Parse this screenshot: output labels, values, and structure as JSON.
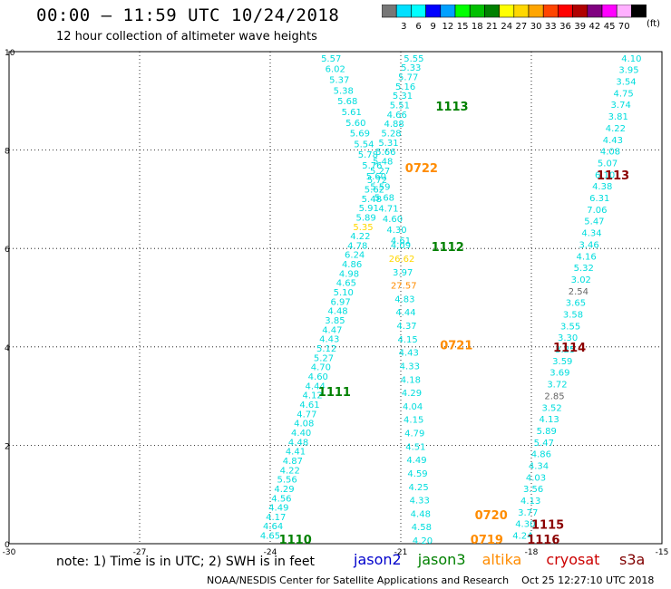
{
  "header": {
    "title": "00:00 – 11:59 UTC 10/24/2018",
    "subtitle": "12 hour collection of altimeter wave heights"
  },
  "legend": {
    "unit": "(ft)",
    "bins": [
      {
        "label": "",
        "color": "#777777"
      },
      {
        "label": "3",
        "color": "#00e0ff"
      },
      {
        "label": "6",
        "color": "#00ffff"
      },
      {
        "label": "9",
        "color": "#0000ff"
      },
      {
        "label": "12",
        "color": "#00a0ff"
      },
      {
        "label": "15",
        "color": "#00ff00"
      },
      {
        "label": "18",
        "color": "#00c000"
      },
      {
        "label": "21",
        "color": "#008000"
      },
      {
        "label": "24",
        "color": "#ffff00"
      },
      {
        "label": "27",
        "color": "#ffd700"
      },
      {
        "label": "30",
        "color": "#ffa500"
      },
      {
        "label": "33",
        "color": "#ff4500"
      },
      {
        "label": "36",
        "color": "#ff0000"
      },
      {
        "label": "39",
        "color": "#b00000"
      },
      {
        "label": "42",
        "color": "#800080"
      },
      {
        "label": "45",
        "color": "#ff00ff"
      },
      {
        "label": "70",
        "color": "#ffb0ff"
      },
      {
        "label": "",
        "color": "#000000"
      }
    ]
  },
  "footer": {
    "note": "note: 1) Time is in UTC; 2) SWH is in feet",
    "satellites": [
      {
        "name": "jason2",
        "color": "#0000cc"
      },
      {
        "name": "jason3",
        "color": "#008000"
      },
      {
        "name": "altika",
        "color": "#ff8c00"
      },
      {
        "name": "cryosat",
        "color": "#cc0000"
      },
      {
        "name": "s3a",
        "color": "#800000"
      }
    ],
    "credit": "NOAA/NESDIS Center for Satellite Applications and Research    Oct 25 12:27:10 UTC 2018"
  },
  "chart_data": {
    "type": "scatter",
    "xlim": [
      -30,
      -15
    ],
    "ylim": [
      0,
      10
    ],
    "x_ticks": [
      -30,
      -27,
      -24,
      -21,
      -18,
      -15
    ],
    "y_ticks": [
      0,
      2,
      4,
      6,
      8,
      10
    ],
    "grid": true,
    "colors": {
      "cyan": "#00dddd",
      "gold": "#ffd700",
      "orange": "#ff8c00",
      "gray": "#666666",
      "green": "#008000",
      "darkred": "#8b0000"
    },
    "tracks": [
      {
        "label": "1110",
        "label_color": "green",
        "label_at": [
          -23.8,
          0.0
        ],
        "from": [
          -24.0,
          0.1
        ],
        "to": [
          -20.7,
          9.8
        ],
        "values": [
          "4.65",
          "4.64",
          "4.17",
          "4.49",
          "4.56",
          "4.29",
          "5.56",
          "4.22",
          "4.87",
          "4.41",
          "4.48",
          "4.40",
          "4.08",
          "4.77",
          "4.61",
          "4.12",
          "4.44",
          "4.60",
          "4.70",
          "5.27",
          "5.12",
          "4.43",
          "4.47",
          "3.85",
          "4.48",
          "6.97",
          "5.10",
          "4.65",
          "4.98",
          "4.86",
          "6.24",
          "4.78",
          "4.22",
          "5.35",
          "5.89",
          "5.91",
          "5.48",
          "5.62",
          "5.72",
          "5.27",
          "5.48",
          "5.66",
          "5.31",
          "5.28",
          "4.88",
          "4.66",
          "5.51",
          "5.31",
          "5.16",
          "5.77",
          "5.33",
          "5.55"
        ],
        "colored": {
          "33": "gold"
        }
      },
      {
        "label": "1111",
        "label_color": "green",
        "label_at": [
          -22.9,
          3.0
        ],
        "from": [
          -22.6,
          9.8
        ],
        "to": [
          -21.0,
          6.1
        ],
        "values": [
          "5.57",
          "6.02",
          "5.37",
          "5.38",
          "5.68",
          "5.61",
          "5.60",
          "5.69",
          "5.54",
          "5.78",
          "5.76",
          "5.60",
          "5.59",
          "5.68",
          "4.71",
          "4.60",
          "4.30",
          "4.61"
        ],
        "colored": {}
      },
      {
        "label": "1112",
        "label_color": "green",
        "label_at": [
          -20.3,
          5.95
        ],
        "from": [
          -21.0,
          6.0
        ],
        "to": [
          -20.5,
          0.0
        ],
        "values": [
          "4.09",
          "26.62",
          "3.97",
          "27.57",
          "4.83",
          "4.44",
          "4.37",
          "4.15",
          "4.43",
          "4.33",
          "4.18",
          "4.29",
          "4.04",
          "4.15",
          "4.79",
          "4.51",
          "4.49",
          "4.59",
          "4.25",
          "4.33",
          "4.48",
          "4.58",
          "4.20"
        ],
        "colored": {
          "1": "gold",
          "3": "orange"
        }
      },
      {
        "label": "1113",
        "label_color": "green",
        "label_at": [
          -20.2,
          8.8
        ],
        "from": [
          -20.7,
          9.8
        ],
        "to": [
          -20.7,
          9.8
        ],
        "values": [],
        "colored": {}
      },
      {
        "label": "1113",
        "label_color": "darkred",
        "label_at": [
          -16.5,
          7.4
        ],
        "from": [
          -15.7,
          9.8
        ],
        "to": [
          -18.2,
          0.1
        ],
        "values": [
          "4.10",
          "3.95",
          "3.54",
          "4.75",
          "3.74",
          "3.81",
          "4.22",
          "4.43",
          "4.08",
          "5.07",
          "6.10",
          "4.38",
          "6.31",
          "7.06",
          "5.47",
          "4.34",
          "3.46",
          "4.16",
          "5.32",
          "3.02",
          "2.54",
          "3.65",
          "3.58",
          "3.55",
          "3.30",
          "3.25",
          "3.59",
          "3.69",
          "3.72",
          "2.85",
          "3.52",
          "4.13",
          "5.89",
          "5.47",
          "4.86",
          "4.34",
          "4.03",
          "3.56",
          "4.13",
          "3.77",
          "4.30",
          "4.24"
        ],
        "colored": {
          "20": "gray",
          "29": "gray"
        }
      },
      {
        "label": "1114",
        "label_color": "darkred",
        "label_at": [
          -17.5,
          3.9
        ],
        "from": [
          -17.5,
          3.9
        ],
        "to": [
          -17.5,
          3.9
        ],
        "values": [],
        "colored": {}
      },
      {
        "label": "1115",
        "label_color": "darkred",
        "label_at": [
          -18.0,
          0.3
        ],
        "from": [
          -18.0,
          0.3
        ],
        "to": [
          -18.0,
          0.3
        ],
        "values": [],
        "colored": {}
      },
      {
        "label": "1116",
        "label_color": "darkred",
        "label_at": [
          -18.1,
          0.0
        ],
        "from": [
          -18.1,
          0.0
        ],
        "to": [
          -18.1,
          0.0
        ],
        "values": [],
        "colored": {}
      },
      {
        "label": "0722",
        "label_color": "orange",
        "label_at": [
          -20.9,
          7.55
        ],
        "from": [
          -20.9,
          7.55
        ],
        "to": [
          -20.9,
          7.55
        ],
        "values": [],
        "colored": {}
      },
      {
        "label": "0721",
        "label_color": "orange",
        "label_at": [
          -20.1,
          3.95
        ],
        "from": [
          -20.1,
          3.95
        ],
        "to": [
          -20.1,
          3.95
        ],
        "values": [],
        "colored": {}
      },
      {
        "label": "0720",
        "label_color": "orange",
        "label_at": [
          -19.3,
          0.5
        ],
        "from": [
          -19.3,
          0.5
        ],
        "to": [
          -19.3,
          0.5
        ],
        "values": [],
        "colored": {}
      },
      {
        "label": "0719",
        "label_color": "orange",
        "label_at": [
          -19.4,
          0.0
        ],
        "from": [
          -19.4,
          0.0
        ],
        "to": [
          -19.4,
          0.0
        ],
        "values": [],
        "colored": {}
      }
    ]
  }
}
